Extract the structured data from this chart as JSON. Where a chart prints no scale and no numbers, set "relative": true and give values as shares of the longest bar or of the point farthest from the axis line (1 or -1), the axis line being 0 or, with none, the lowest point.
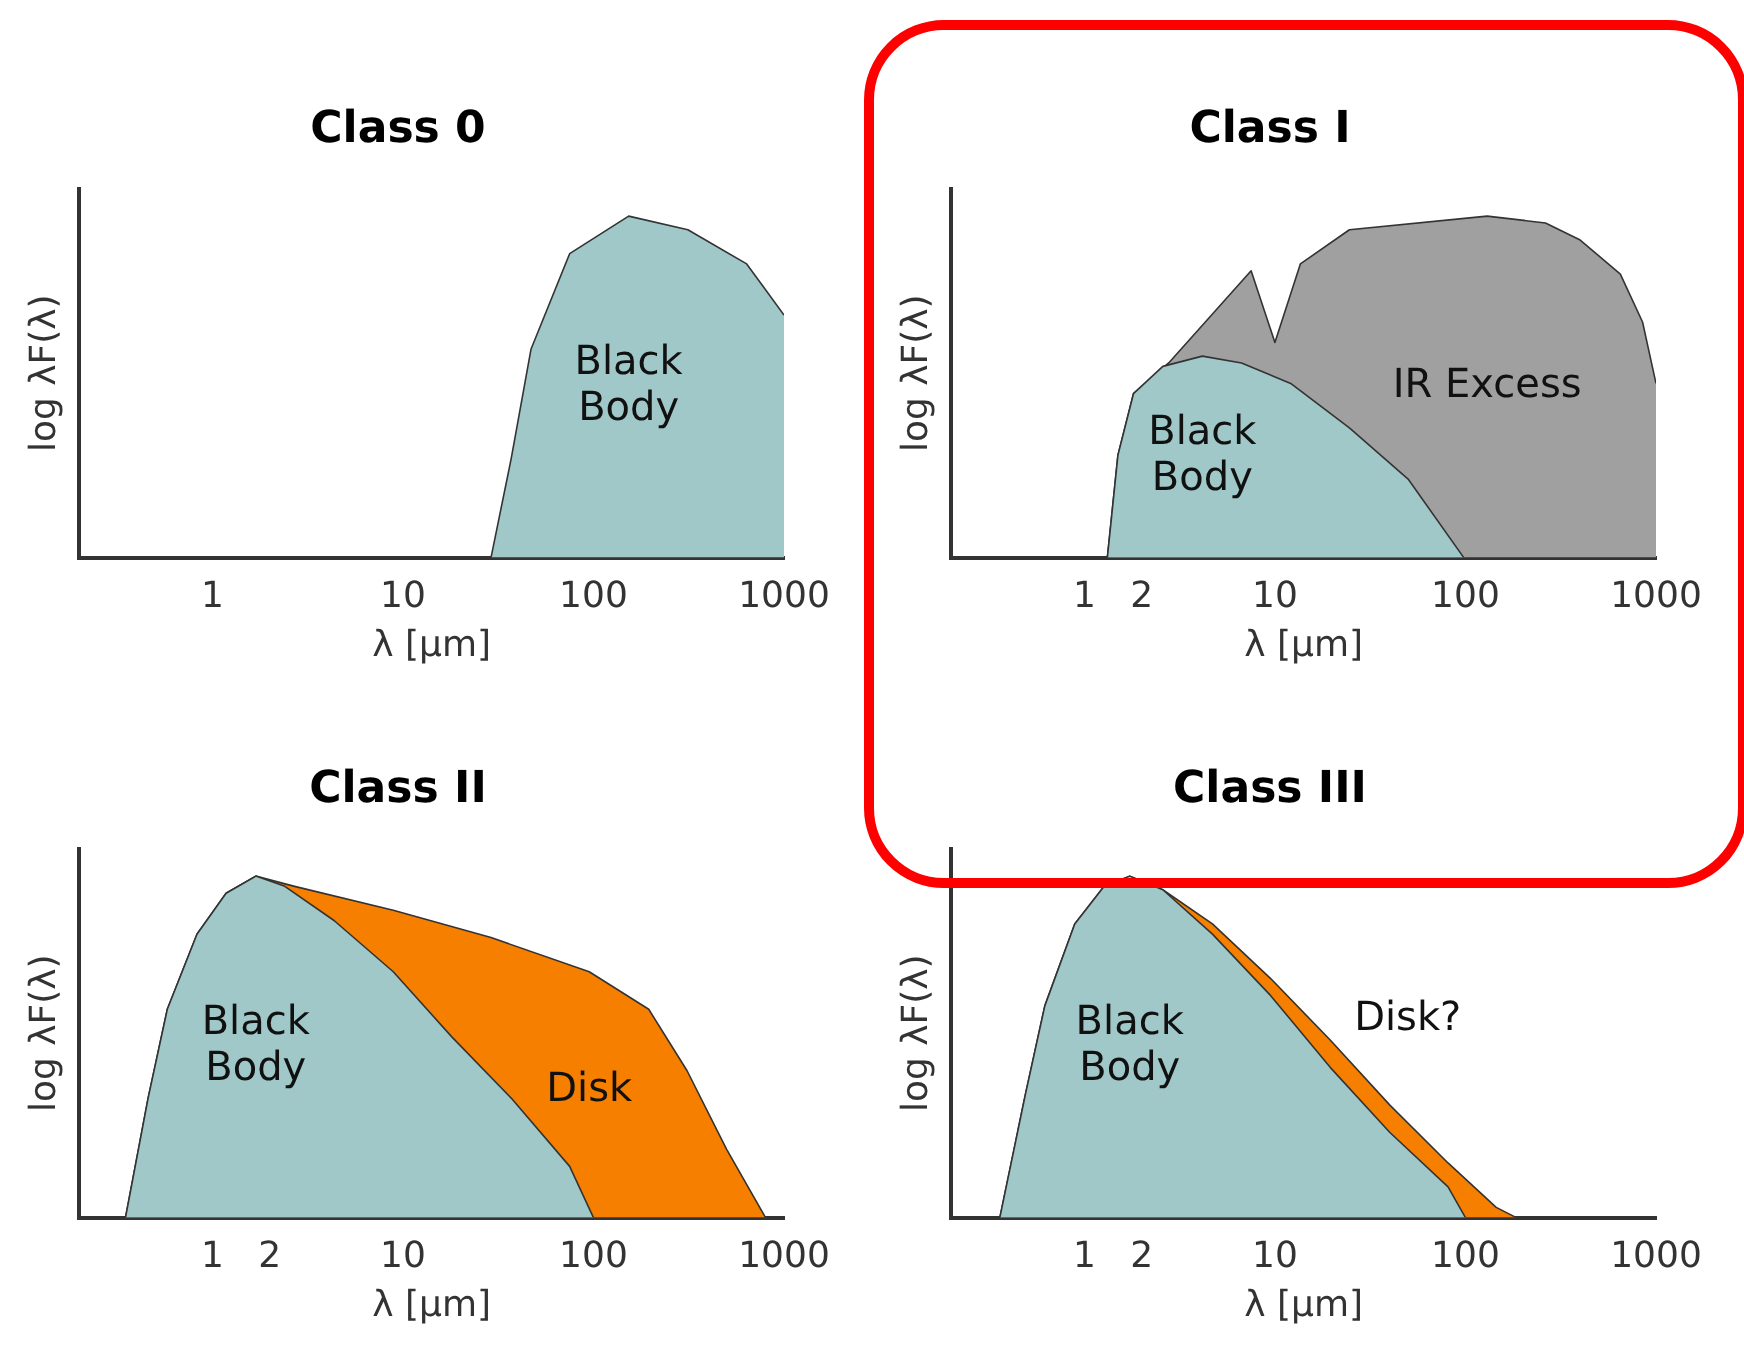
{
  "chart_data": [
    {
      "type": "area",
      "title": "Class 0",
      "xlabel": "λ [μm]",
      "ylabel": "log λF(λ)",
      "relative": true,
      "log": "x",
      "xlim": [
        0.2,
        1000
      ],
      "xticks": [
        1,
        10,
        100,
        1000
      ],
      "legend": false,
      "series": [
        {
          "name": "Black Body",
          "color": "#a0c8c8",
          "x": [
            29,
            37,
            47,
            75,
            153,
            313,
            637,
            1000
          ],
          "values": [
            0,
            0.29,
            0.61,
            0.89,
            1.0,
            0.96,
            0.86,
            0.71
          ]
        }
      ]
    },
    {
      "type": "area",
      "title": "Class I",
      "xlabel": "λ [μm]",
      "ylabel": "log λF(λ)",
      "relative": true,
      "log": "x",
      "xlim": [
        0.2,
        1000
      ],
      "xticks": [
        1,
        2,
        10,
        100,
        1000
      ],
      "legend": false,
      "series": [
        {
          "name": "Black Body",
          "color": "#a0c8c8",
          "x": [
            1.32,
            1.5,
            1.81,
            2.58,
            4.16,
            6.68,
            12.1,
            24.6,
            50,
            98
          ],
          "values": [
            0,
            0.3,
            0.48,
            0.56,
            0.59,
            0.57,
            0.51,
            0.38,
            0.23,
            0
          ]
        },
        {
          "name": "IR Excess",
          "color": "#a0a0a0",
          "x": [
            1.32,
            1.5,
            1.81,
            2.77,
            7.5,
            10,
            13.6,
            24.6,
            130,
            263,
            400,
            650,
            850,
            1000
          ],
          "values": [
            0,
            0.3,
            0.48,
            0.57,
            0.84,
            0.63,
            0.86,
            0.96,
            1.0,
            0.98,
            0.93,
            0.83,
            0.69,
            0.51
          ]
        }
      ]
    },
    {
      "type": "area",
      "title": "Class II",
      "xlabel": "λ [μm]",
      "ylabel": "log λF(λ)",
      "relative": true,
      "log": "x",
      "xlim": [
        0.2,
        1000
      ],
      "xticks": [
        1,
        2,
        10,
        100,
        1000
      ],
      "legend": false,
      "series": [
        {
          "name": "Black Body",
          "color": "#a0c8c8",
          "x": [
            0.35,
            0.46,
            0.58,
            0.83,
            1.18,
            1.69,
            2.4,
            4.35,
            8.9,
            18,
            37,
            75,
            100
          ],
          "values": [
            0,
            0.35,
            0.61,
            0.83,
            0.95,
            1.0,
            0.97,
            0.87,
            0.72,
            0.53,
            0.35,
            0.15,
            0
          ]
        },
        {
          "name": "Disk",
          "color": "#f77f00",
          "x": [
            0.35,
            0.46,
            0.58,
            0.83,
            1.18,
            1.69,
            2.7,
            8.9,
            29,
            95,
            195,
            310,
            500,
            800
          ],
          "values": [
            0,
            0.35,
            0.61,
            0.83,
            0.95,
            1.0,
            0.97,
            0.9,
            0.82,
            0.72,
            0.61,
            0.43,
            0.2,
            0
          ]
        }
      ]
    },
    {
      "type": "area",
      "title": "Class III",
      "xlabel": "λ [μm]",
      "ylabel": "log λF(λ)",
      "relative": true,
      "log": "x",
      "xlim": [
        0.2,
        1000
      ],
      "xticks": [
        1,
        2,
        10,
        100,
        1000
      ],
      "legend": false,
      "series": [
        {
          "name": "Black Body",
          "color": "#a0c8c8",
          "x": [
            0.36,
            0.49,
            0.62,
            0.89,
            1.27,
            1.73,
            2.58,
            4.7,
            9.5,
            19.5,
            40,
            81,
            100
          ],
          "values": [
            0,
            0.36,
            0.62,
            0.86,
            0.97,
            1.0,
            0.96,
            0.83,
            0.65,
            0.44,
            0.25,
            0.09,
            0
          ]
        },
        {
          "name": "Disk?",
          "color": "#f77f00",
          "x": [
            0.36,
            0.49,
            0.62,
            0.89,
            1.27,
            1.73,
            2.58,
            4.7,
            9.5,
            19.5,
            40,
            81,
            145,
            185
          ],
          "values": [
            0,
            0.36,
            0.62,
            0.86,
            0.97,
            1.0,
            0.96,
            0.86,
            0.7,
            0.52,
            0.33,
            0.16,
            0.03,
            0
          ]
        }
      ]
    }
  ]
}
